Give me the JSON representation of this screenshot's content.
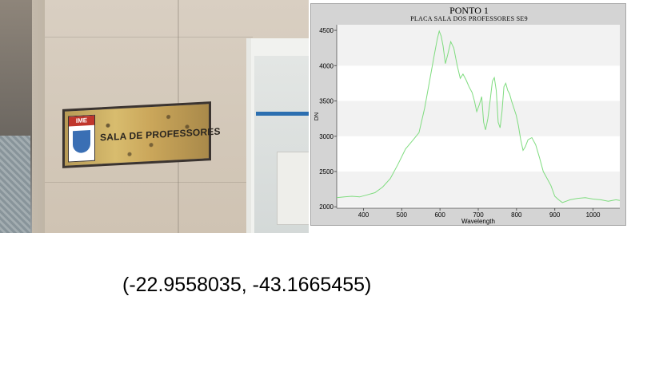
{
  "photo": {
    "sign_badge_text": "IME",
    "sign_text": "SALA DE PROFESSORES"
  },
  "chart_data": {
    "type": "line",
    "title": "PONTO 1",
    "subtitle": "PLACA SALA DOS PROFESSORES SE9",
    "xlabel": "Wavelength",
    "ylabel": "DN",
    "xlim": [
      330,
      1070
    ],
    "ylim": [
      1980,
      4580
    ],
    "x_ticks": [
      400,
      500,
      600,
      700,
      800,
      900,
      1000
    ],
    "y_ticks": [
      2000,
      2500,
      3000,
      3500,
      4000,
      4500
    ],
    "grid": "alternating horizontal bands",
    "colors": {
      "line": "#7fdc7f",
      "plot_background": "#ffffff",
      "band": "#f2f2f2",
      "panel": "#d4d4d4"
    },
    "series": [
      {
        "x": [
          330,
          350,
          370,
          390,
          410,
          430,
          450,
          470,
          490,
          510,
          530,
          545,
          560,
          575,
          585,
          593,
          598,
          603,
          608,
          614,
          620,
          628,
          636,
          645,
          653,
          660,
          668,
          676,
          684,
          690,
          696,
          703,
          709,
          714,
          719,
          725,
          731,
          737,
          742,
          747,
          752,
          757,
          762,
          767,
          772,
          777,
          782,
          787,
          793,
          799,
          805,
          811,
          817,
          823,
          830,
          840,
          850,
          860,
          870,
          880,
          890,
          900,
          910,
          920,
          930,
          940,
          960,
          980,
          1000,
          1020,
          1040,
          1060,
          1070
        ],
        "y": [
          2130,
          2140,
          2150,
          2140,
          2170,
          2200,
          2280,
          2400,
          2600,
          2820,
          2950,
          3050,
          3400,
          3850,
          4150,
          4380,
          4490,
          4420,
          4280,
          4030,
          4150,
          4340,
          4250,
          4000,
          3820,
          3880,
          3800,
          3700,
          3620,
          3500,
          3350,
          3450,
          3560,
          3200,
          3090,
          3250,
          3500,
          3780,
          3830,
          3650,
          3200,
          3120,
          3350,
          3700,
          3750,
          3650,
          3600,
          3500,
          3400,
          3300,
          3150,
          2950,
          2800,
          2850,
          2950,
          2980,
          2880,
          2700,
          2500,
          2400,
          2300,
          2150,
          2100,
          2060,
          2080,
          2100,
          2120,
          2130,
          2110,
          2100,
          2080,
          2100,
          2090
        ]
      }
    ]
  },
  "coordinates": "(-22.9558035, -43.1665455)"
}
